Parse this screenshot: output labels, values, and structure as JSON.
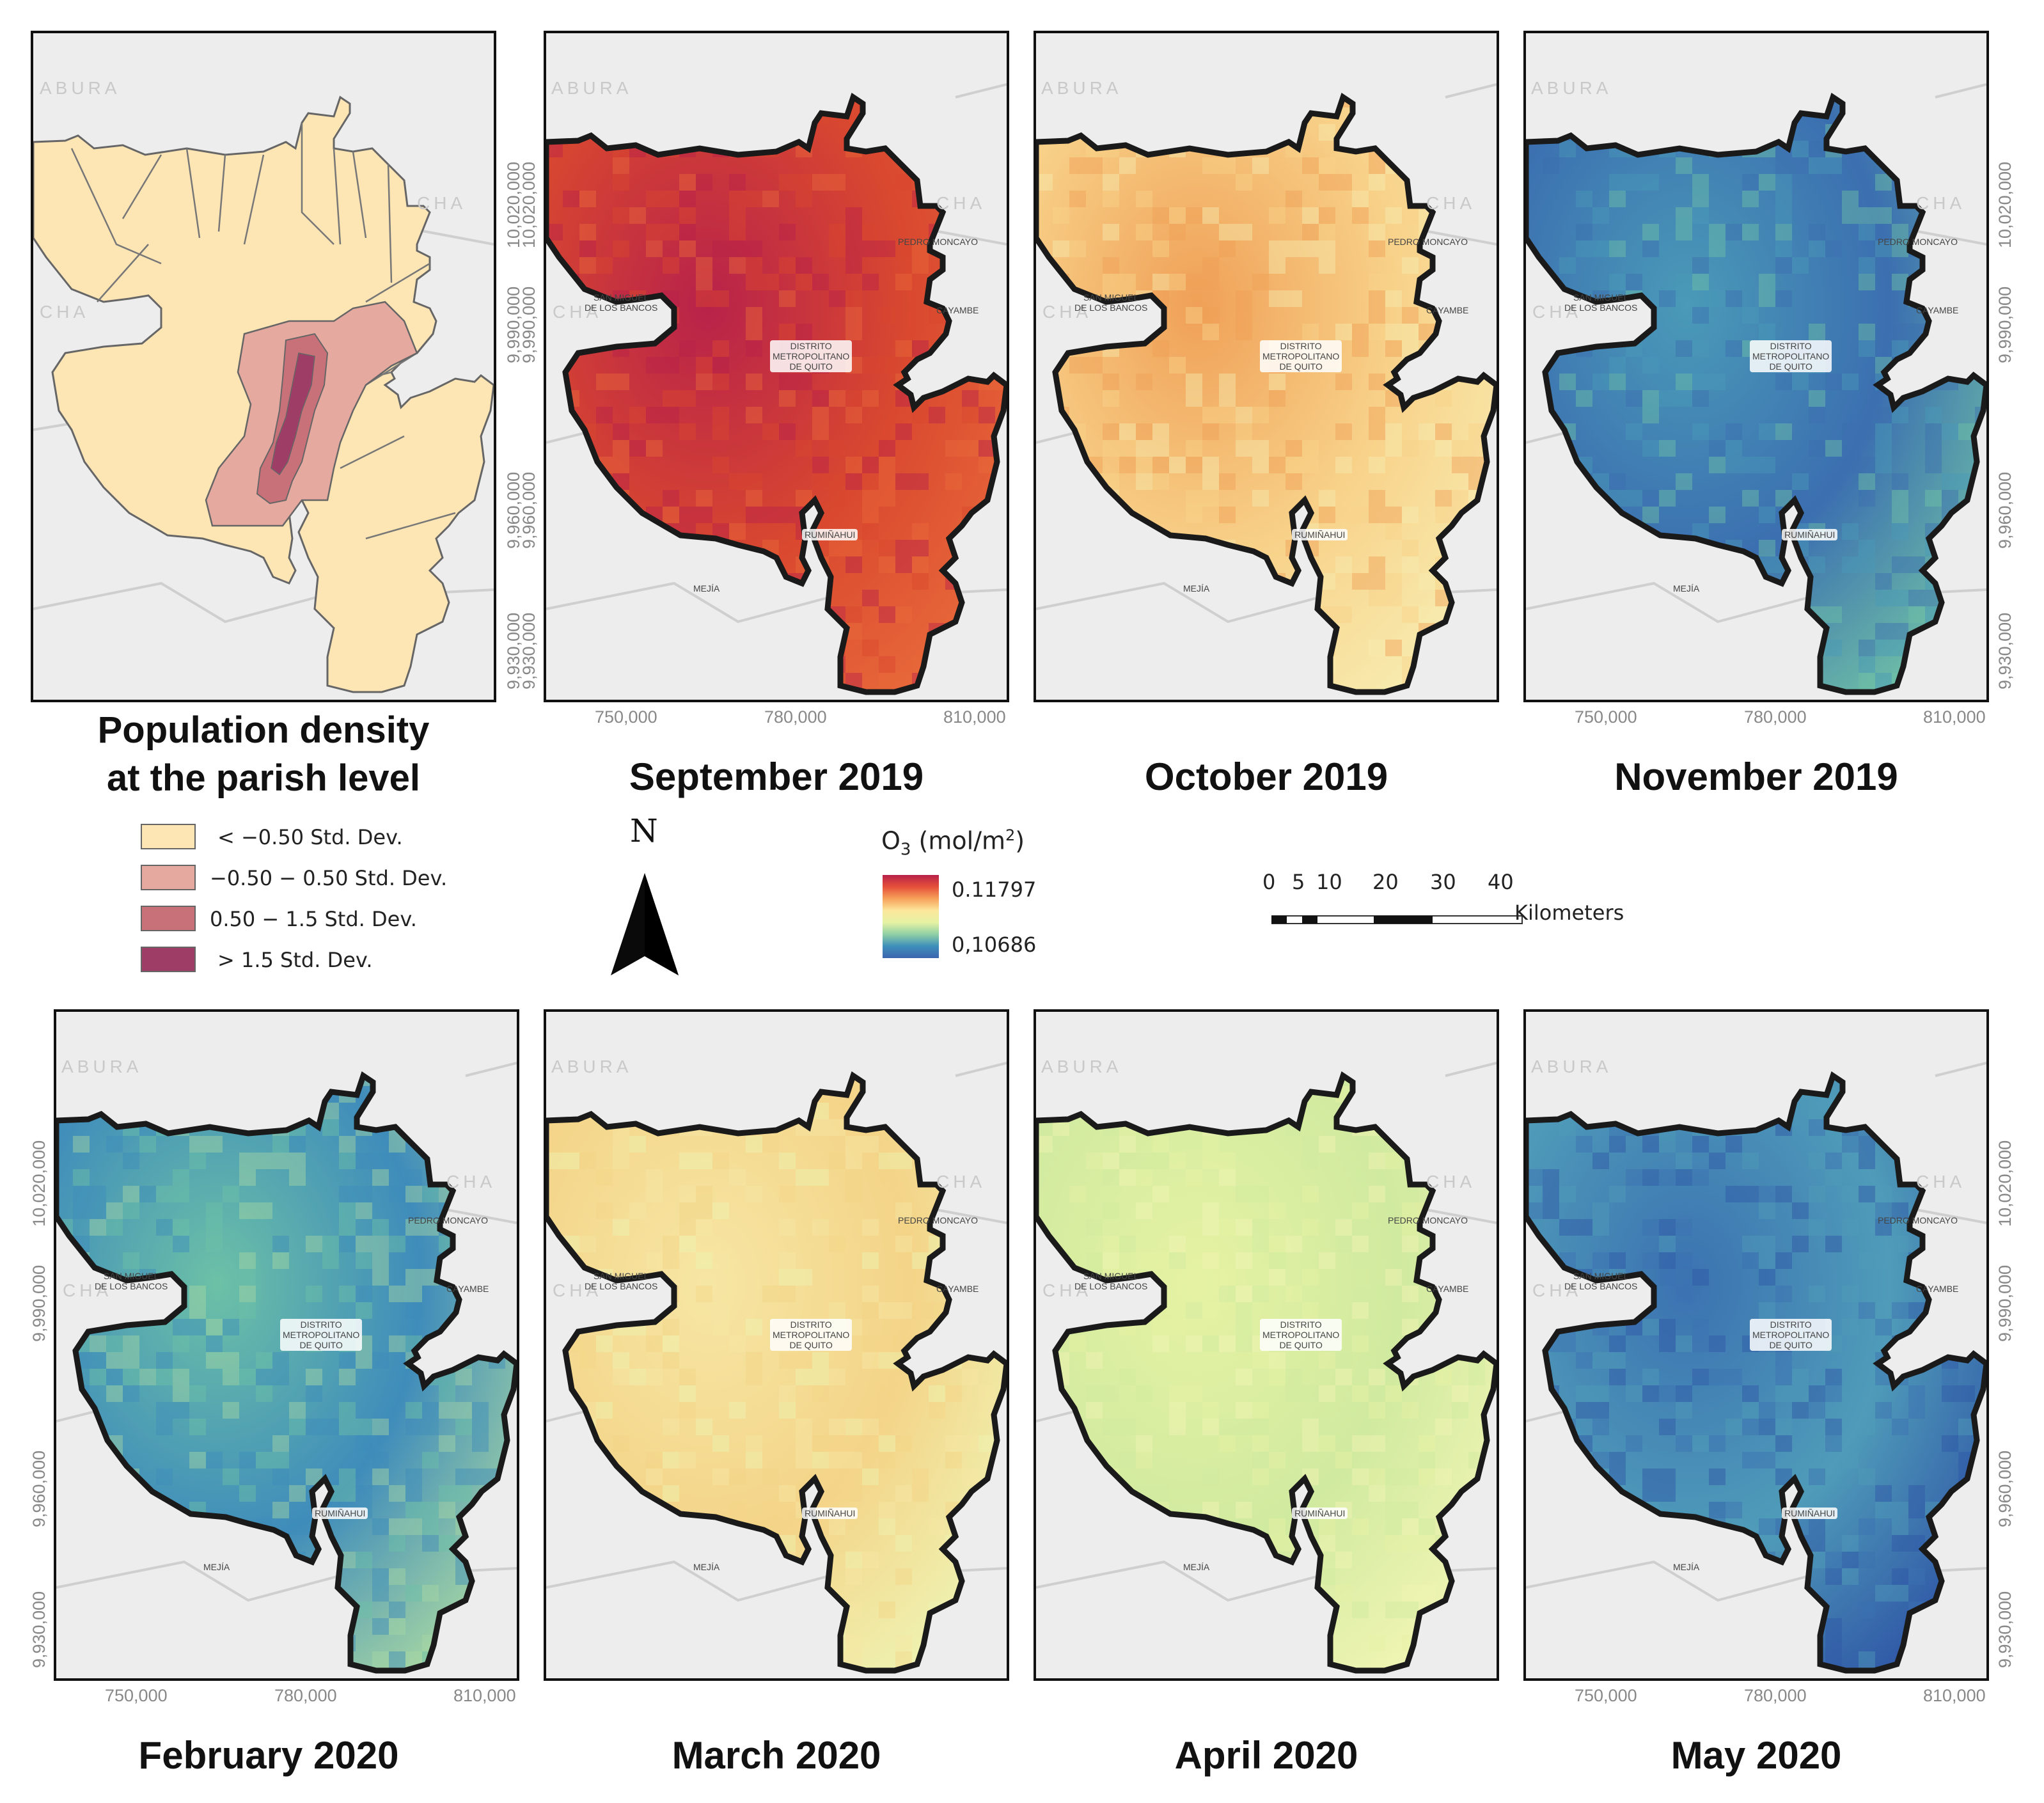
{
  "panels": {
    "pop": {
      "title_lines": [
        "Population density",
        "at the parish level"
      ]
    },
    "sep2019": {
      "title": "September 2019"
    },
    "oct2019": {
      "title": "October 2019"
    },
    "nov2019": {
      "title": "November 2019"
    },
    "feb2020": {
      "title": "February 2020"
    },
    "mar2020": {
      "title": "March 2020"
    },
    "apr2020": {
      "title": "April 2020"
    },
    "may2020": {
      "title": "May 2020"
    }
  },
  "map_labels": {
    "district": "DISTRITO\nMETROPOLITANO\nDE QUITO",
    "san_miguel": "SAN MIGUEL\nDE LOS BANCOS",
    "pedro_moncayo": "PEDRO MONCAYO",
    "cayambe": "CAYAMBE",
    "rumiñahui": "RUMIÑAHUI",
    "mejia": "MEJÍA",
    "abura": "ABURA",
    "cha": "CHA"
  },
  "axes": {
    "x_ticks": [
      "750,000",
      "780,000",
      "810,000"
    ],
    "y_ticks": [
      "10,020,000",
      "9,990,000",
      "9,960,000",
      "9,930,000"
    ]
  },
  "population_legend": {
    "items": [
      {
        "label": "< −0.50 Std. Dev.",
        "color": "#fde5b4"
      },
      {
        "label": "−0.50 − 0.50 Std. Dev.",
        "color": "#e6a9a0"
      },
      {
        "label": "0.50 − 1.5 Std. Dev.",
        "color": "#c97179"
      },
      {
        "label": "> 1.5 Std. Dev.",
        "color": "#9e3e66"
      }
    ]
  },
  "north_arrow": {
    "label": "N"
  },
  "o3_legend": {
    "title_base": "O",
    "title_sub": "3",
    "title_unit": " (mol/m",
    "title_sup": "2",
    "title_end": ")",
    "max": "0.11797",
    "min": "0,10686"
  },
  "scale_bar": {
    "ticks": [
      "0",
      "5",
      "10",
      "20",
      "30",
      "40"
    ],
    "unit": "Kilometers"
  },
  "colors": {
    "pop_low": "#fde5b4",
    "sep2019": [
      "#b8224a",
      "#d9482f",
      "#e8693a"
    ],
    "oct2019": [
      "#f0a057",
      "#f8d28a",
      "#f7ecb0"
    ],
    "nov2019": [
      "#4a9ab8",
      "#3b6fb0",
      "#6fc0a6"
    ],
    "feb2020": [
      "#6cc1a6",
      "#3f8cbb",
      "#a6d6a3"
    ],
    "mar2020": [
      "#f6e6a4",
      "#f4d488",
      "#eef3b2"
    ],
    "apr2020": [
      "#e6f2a3",
      "#d0ea9f",
      "#f1f5b4"
    ],
    "may2020": [
      "#3b72b1",
      "#4f9bb9",
      "#2f56a6"
    ]
  }
}
